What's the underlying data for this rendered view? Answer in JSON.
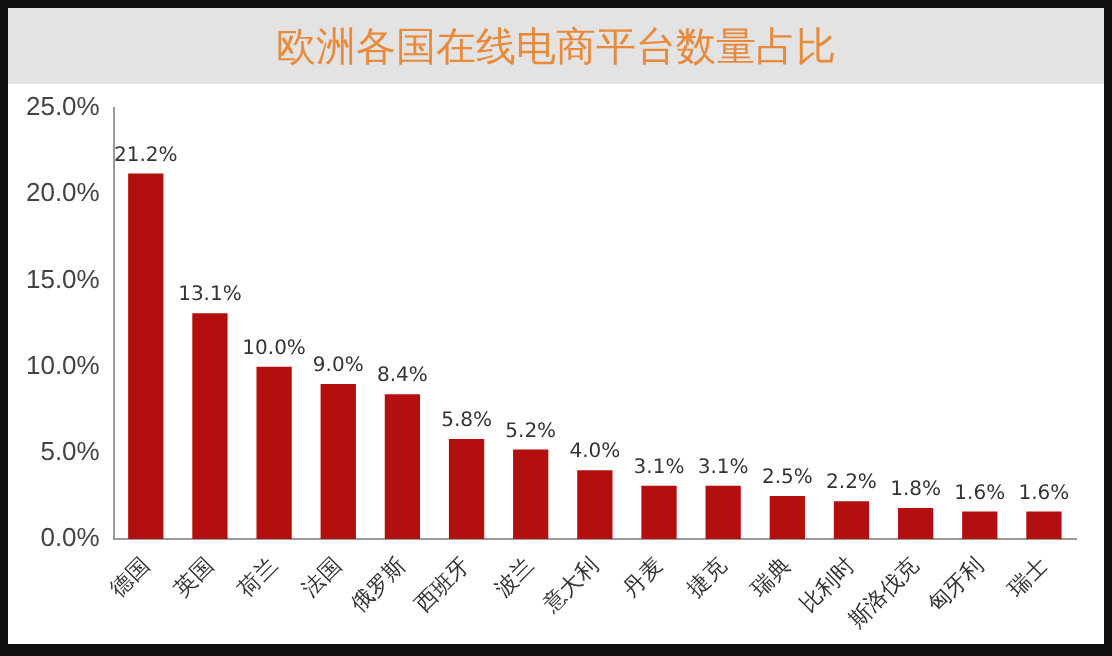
{
  "chart_data": {
    "type": "bar",
    "title": "欧洲各国在线电商平台数量占比",
    "categories": [
      "德国",
      "英国",
      "荷兰",
      "法国",
      "俄罗斯",
      "西班牙",
      "波兰",
      "意大利",
      "丹麦",
      "捷克",
      "瑞典",
      "比利时",
      "斯洛伐克",
      "匈牙利",
      "瑞士"
    ],
    "values": [
      21.2,
      13.1,
      10.0,
      9.0,
      8.4,
      5.8,
      5.2,
      4.0,
      3.1,
      3.1,
      2.5,
      2.2,
      1.8,
      1.6,
      1.6
    ],
    "value_labels": [
      "21.2%",
      "13.1%",
      "10.0%",
      "9.0%",
      "8.4%",
      "5.8%",
      "5.2%",
      "4.0%",
      "3.1%",
      "3.1%",
      "2.5%",
      "2.2%",
      "1.8%",
      "1.6%",
      "1.6%"
    ],
    "color": "#b30f0f",
    "ylim": [
      0,
      25
    ],
    "yticks": [
      {
        "value": 0,
        "label": "0.0%"
      },
      {
        "value": 5,
        "label": "5.0%"
      },
      {
        "value": 10,
        "label": "10.0%"
      },
      {
        "value": 15,
        "label": "15.0%"
      },
      {
        "value": 20,
        "label": "20.0%"
      },
      {
        "value": 25,
        "label": "25.0%"
      }
    ],
    "grid": false,
    "legend": false
  }
}
